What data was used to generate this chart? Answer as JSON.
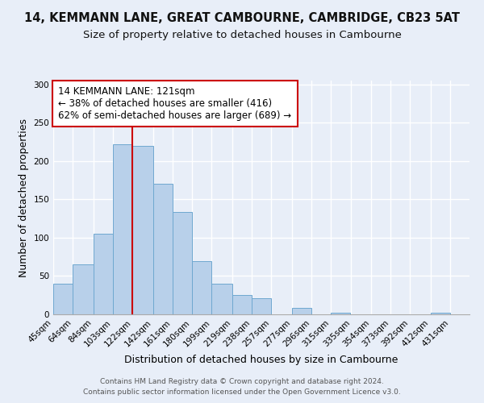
{
  "title_line1": "14, KEMMANN LANE, GREAT CAMBOURNE, CAMBRIDGE, CB23 5AT",
  "title_line2": "Size of property relative to detached houses in Cambourne",
  "xlabel": "Distribution of detached houses by size in Cambourne",
  "ylabel": "Number of detached properties",
  "footer_line1": "Contains HM Land Registry data © Crown copyright and database right 2024.",
  "footer_line2": "Contains public sector information licensed under the Open Government Licence v3.0.",
  "bar_left_edges": [
    45,
    64,
    84,
    103,
    122,
    142,
    161,
    180,
    199,
    219,
    238,
    257,
    277,
    296,
    315,
    335,
    354,
    373,
    392,
    412
  ],
  "bar_heights": [
    40,
    65,
    105,
    222,
    220,
    170,
    134,
    69,
    40,
    25,
    21,
    0,
    8,
    0,
    2,
    0,
    0,
    0,
    0,
    2
  ],
  "bar_widths": [
    19,
    20,
    19,
    19,
    20,
    19,
    19,
    19,
    20,
    19,
    19,
    20,
    19,
    19,
    19,
    19,
    19,
    19,
    20,
    19
  ],
  "tick_labels": [
    "45sqm",
    "64sqm",
    "84sqm",
    "103sqm",
    "122sqm",
    "142sqm",
    "161sqm",
    "180sqm",
    "199sqm",
    "219sqm",
    "238sqm",
    "257sqm",
    "277sqm",
    "296sqm",
    "315sqm",
    "335sqm",
    "354sqm",
    "373sqm",
    "392sqm",
    "412sqm",
    "431sqm"
  ],
  "tick_positions": [
    45,
    64,
    84,
    103,
    122,
    142,
    161,
    180,
    199,
    219,
    238,
    257,
    277,
    296,
    315,
    335,
    354,
    373,
    392,
    412,
    431
  ],
  "bar_color": "#b8d0ea",
  "bar_edge_color": "#6fa8d0",
  "vline_x": 122,
  "vline_color": "#cc0000",
  "annotation_text_line1": "14 KEMMANN LANE: 121sqm",
  "annotation_text_line2": "← 38% of detached houses are smaller (416)",
  "annotation_text_line3": "62% of semi-detached houses are larger (689) →",
  "annotation_box_color": "#ffffff",
  "annotation_box_edge": "#cc0000",
  "annotation_fontsize": 8.5,
  "ylim": [
    0,
    305
  ],
  "xlim": [
    45,
    450
  ],
  "yticks": [
    0,
    50,
    100,
    150,
    200,
    250,
    300
  ],
  "background_color": "#e8eef8",
  "grid_color": "#ffffff",
  "title_fontsize": 10.5,
  "subtitle_fontsize": 9.5,
  "axis_label_fontsize": 9,
  "tick_fontsize": 7.5,
  "footer_fontsize": 6.5
}
